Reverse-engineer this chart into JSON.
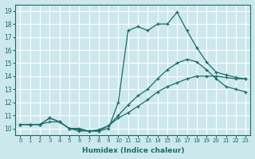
{
  "xlabel": "Humidex (Indice chaleur)",
  "xlim": [
    -0.5,
    23.5
  ],
  "ylim": [
    9.5,
    19.5
  ],
  "xticks": [
    0,
    1,
    2,
    3,
    4,
    5,
    6,
    7,
    8,
    9,
    10,
    11,
    12,
    13,
    14,
    15,
    16,
    17,
    18,
    19,
    20,
    21,
    22,
    23
  ],
  "yticks": [
    10,
    11,
    12,
    13,
    14,
    15,
    16,
    17,
    18,
    19
  ],
  "bg_color": "#cde8ec",
  "line_color": "#1a6b6b",
  "grid_color": "#ffffff",
  "lines": [
    {
      "x": [
        0,
        1,
        2,
        3,
        4,
        5,
        6,
        7,
        8,
        9,
        10,
        11,
        12,
        13,
        14,
        15,
        16,
        17,
        18,
        19,
        20,
        21,
        22,
        23
      ],
      "y": [
        10.3,
        10.3,
        10.3,
        10.5,
        10.5,
        10.0,
        9.8,
        9.8,
        9.8,
        10.0,
        12.0,
        17.5,
        17.8,
        17.5,
        18.0,
        18.0,
        18.9,
        17.5,
        16.2,
        15.1,
        14.3,
        14.1,
        13.9,
        13.8
      ]
    },
    {
      "x": [
        0,
        1,
        2,
        3,
        4,
        5,
        6,
        7,
        8,
        9,
        10,
        11,
        12,
        13,
        14,
        15,
        16,
        17,
        18,
        19,
        20,
        21,
        22,
        23
      ],
      "y": [
        10.3,
        10.3,
        10.3,
        10.8,
        10.5,
        10.0,
        10.0,
        9.8,
        9.8,
        10.2,
        11.0,
        11.8,
        12.5,
        13.0,
        13.8,
        14.5,
        15.0,
        15.3,
        15.1,
        14.5,
        13.8,
        13.2,
        13.0,
        12.8
      ]
    },
    {
      "x": [
        0,
        1,
        2,
        3,
        4,
        5,
        6,
        7,
        8,
        9,
        10,
        11,
        12,
        13,
        14,
        15,
        16,
        17,
        18,
        19,
        20,
        21,
        22,
        23
      ],
      "y": [
        10.3,
        10.3,
        10.3,
        10.8,
        10.5,
        10.0,
        9.9,
        9.8,
        9.9,
        10.2,
        10.8,
        11.2,
        11.7,
        12.2,
        12.8,
        13.2,
        13.5,
        13.8,
        14.0,
        14.0,
        14.0,
        13.9,
        13.8,
        13.8
      ]
    }
  ]
}
